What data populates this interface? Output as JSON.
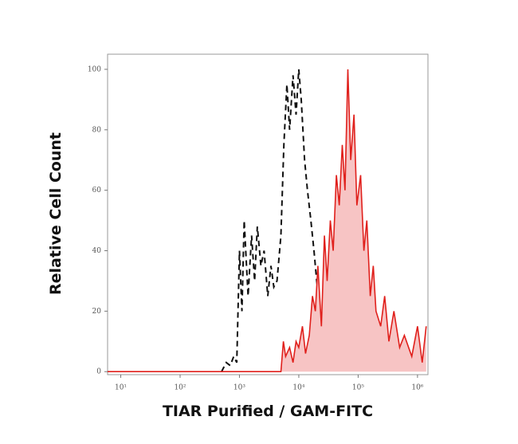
{
  "chart_data": {
    "type": "line",
    "log_x": true,
    "x_label": "TIAR Purified / GAM-FITC",
    "y_label": "Relative Cell Count",
    "xlim": [
      6,
      1500000
    ],
    "ylim": [
      -1,
      105
    ],
    "xticks": [
      {
        "value": 10,
        "label": "10¹"
      },
      {
        "value": 100,
        "label": "10²"
      },
      {
        "value": 1000,
        "label": "10³"
      },
      {
        "value": 10000,
        "label": "10⁴"
      },
      {
        "value": 100000,
        "label": "10⁵"
      },
      {
        "value": 1000000,
        "label": "10⁶"
      }
    ],
    "yticks": [
      0,
      20,
      40,
      60,
      80,
      100
    ],
    "series": [
      {
        "color": "#111111",
        "dashed": true,
        "filled": false,
        "x": [
          500,
          600,
          700,
          800,
          900,
          1000,
          1100,
          1200,
          1400,
          1600,
          1800,
          2000,
          2300,
          2600,
          3000,
          3400,
          3800,
          4300,
          5000,
          5600,
          6300,
          7000,
          8000,
          9000,
          10000,
          11000,
          12500,
          14000,
          16000,
          18000,
          20000,
          23000,
          26000,
          30000,
          35000,
          40000,
          45000,
          50000,
          60000,
          70000
        ],
        "values": [
          0,
          3,
          2,
          5,
          3,
          40,
          20,
          50,
          25,
          45,
          30,
          48,
          35,
          40,
          25,
          35,
          28,
          30,
          45,
          75,
          95,
          80,
          98,
          85,
          100,
          90,
          70,
          60,
          50,
          40,
          30,
          20,
          15,
          10,
          8,
          15,
          5,
          12,
          3,
          0
        ]
      },
      {
        "color": "#e0201c",
        "dashed": false,
        "filled": true,
        "fill": "#f7c4c4",
        "x": [
          6,
          5000,
          5500,
          6000,
          7000,
          8000,
          9000,
          10000,
          11500,
          13000,
          15000,
          17000,
          19000,
          21000,
          24000,
          27000,
          30000,
          34000,
          38000,
          43000,
          48000,
          54000,
          60000,
          67000,
          75000,
          85000,
          95000,
          110000,
          125000,
          140000,
          160000,
          180000,
          200000,
          240000,
          280000,
          330000,
          400000,
          500000,
          600000,
          800000,
          1000000,
          1200000,
          1400000
        ],
        "values": [
          0,
          0,
          10,
          5,
          8,
          3,
          10,
          8,
          15,
          6,
          12,
          25,
          20,
          35,
          15,
          45,
          30,
          50,
          40,
          65,
          55,
          75,
          60,
          100,
          70,
          85,
          55,
          65,
          40,
          50,
          25,
          35,
          20,
          15,
          25,
          10,
          20,
          8,
          12,
          5,
          15,
          3,
          15
        ]
      }
    ]
  }
}
